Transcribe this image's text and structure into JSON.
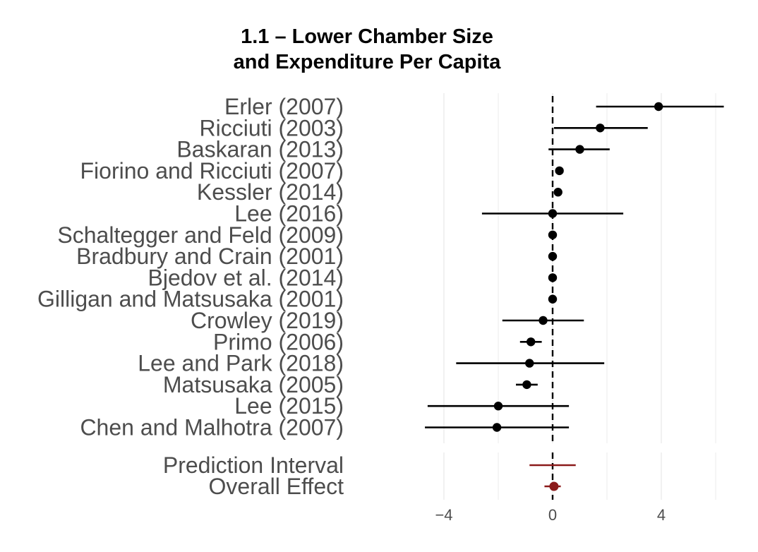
{
  "chart_data": {
    "type": "forest",
    "title_lines": [
      "1.1 – Lower Chamber Size",
      "and Expenditure Per Capita"
    ],
    "xlim": [
      -6,
      7.5
    ],
    "x_ticks": [
      -4,
      0,
      4
    ],
    "x_tick_labels": [
      "−4",
      "0",
      "4"
    ],
    "reference_line_x": 0,
    "grid": true,
    "studies": [
      {
        "label": "Erler (2007)",
        "estimate": 3.9,
        "lower": 1.6,
        "upper": 6.3
      },
      {
        "label": "Ricciuti (2003)",
        "estimate": 1.75,
        "lower": 0.05,
        "upper": 3.5
      },
      {
        "label": "Baskaran (2013)",
        "estimate": 1.0,
        "lower": -0.15,
        "upper": 2.1
      },
      {
        "label": "Fiorino and Ricciuti (2007)",
        "estimate": 0.25,
        "lower": 0.15,
        "upper": 0.35
      },
      {
        "label": "Kessler (2014)",
        "estimate": 0.2,
        "lower": 0.1,
        "upper": 0.3
      },
      {
        "label": "Lee (2016)",
        "estimate": 0.0,
        "lower": -2.6,
        "upper": 2.6
      },
      {
        "label": "Schaltegger and Feld (2009)",
        "estimate": 0.0,
        "lower": -0.1,
        "upper": 0.1
      },
      {
        "label": "Bradbury and Crain (2001)",
        "estimate": 0.0,
        "lower": -0.1,
        "upper": 0.1
      },
      {
        "label": "Bjedov et al. (2014)",
        "estimate": 0.0,
        "lower": -0.1,
        "upper": 0.1
      },
      {
        "label": "Gilligan and Matsusaka (2001)",
        "estimate": 0.0,
        "lower": -0.1,
        "upper": 0.1
      },
      {
        "label": "Crowley (2019)",
        "estimate": -0.35,
        "lower": -1.85,
        "upper": 1.15
      },
      {
        "label": "Primo (2006)",
        "estimate": -0.8,
        "lower": -1.2,
        "upper": -0.4
      },
      {
        "label": "Lee and Park (2018)",
        "estimate": -0.85,
        "lower": -3.55,
        "upper": 1.9
      },
      {
        "label": "Matsusaka (2005)",
        "estimate": -0.95,
        "lower": -1.35,
        "upper": -0.55
      },
      {
        "label": "Lee (2015)",
        "estimate": -2.0,
        "lower": -4.6,
        "upper": 0.6
      },
      {
        "label": "Chen and Malhotra (2007)",
        "estimate": -2.05,
        "lower": -4.7,
        "upper": 0.6
      }
    ],
    "summary": [
      {
        "label": "Prediction Interval",
        "kind": "interval",
        "lower": -0.85,
        "upper": 0.85
      },
      {
        "label": "Overall Effect",
        "kind": "point",
        "estimate": 0.05,
        "lower": -0.3,
        "upper": 0.3
      }
    ],
    "colors": {
      "study": "#000000",
      "summary": "#8b1a1a",
      "label": "#4d4d4d",
      "grid": "#ebebeb",
      "reference": "#000000"
    }
  }
}
